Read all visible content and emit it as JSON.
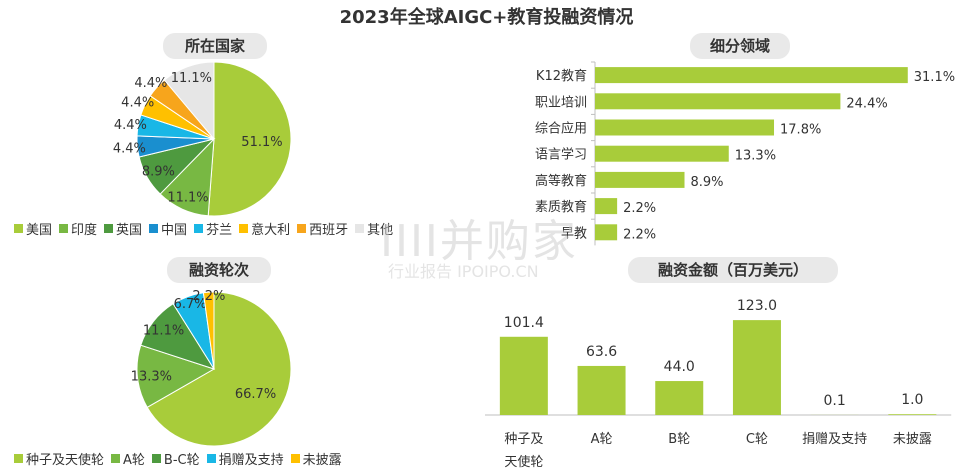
{
  "title": "2023年全球AIGC+教育投融资情况",
  "colors": {
    "green": "#a8cc3a",
    "green_mid": "#78b843",
    "green_dark": "#4e9a3f",
    "blue": "#1a8fcf",
    "cyan": "#19b7e6",
    "yellow": "#ffc000",
    "orange": "#f7a51c",
    "gray": "#e6e6e6"
  },
  "watermark": {
    "main": "IIII并购家",
    "sub": "行业报告 IPOIPO.CN"
  },
  "chart_data": [
    {
      "type": "pie",
      "title": "所在国家",
      "categories": [
        "美国",
        "印度",
        "英国",
        "中国",
        "芬兰",
        "意大利",
        "西班牙",
        "其他"
      ],
      "values": [
        51.1,
        11.1,
        8.9,
        4.4,
        4.4,
        4.4,
        4.4,
        11.1
      ],
      "labels": [
        "51.1%",
        "11.1%",
        "8.9%",
        "4.4%",
        "4.4%",
        "4.4%",
        "4.4%",
        "11.1%"
      ],
      "legend": "bottom"
    },
    {
      "type": "bar",
      "orientation": "horizontal",
      "title": "细分领域",
      "categories": [
        "K12教育",
        "职业培训",
        "综合应用",
        "语言学习",
        "高等教育",
        "素质教育",
        "早教"
      ],
      "values": [
        31.1,
        24.4,
        17.8,
        13.3,
        8.9,
        2.2,
        2.2
      ],
      "labels": [
        "31.1%",
        "24.4%",
        "17.8%",
        "13.3%",
        "8.9%",
        "2.2%",
        "2.2%"
      ]
    },
    {
      "type": "pie",
      "title": "融资轮次",
      "categories": [
        "种子及天使轮",
        "A轮",
        "B-C轮",
        "捐赠及支持",
        "未披露"
      ],
      "values": [
        66.7,
        13.3,
        11.1,
        6.7,
        2.2
      ],
      "labels": [
        "66.7%",
        "13.3%",
        "11.1%",
        "6.7%",
        "2.2%"
      ],
      "legend": "bottom"
    },
    {
      "type": "bar",
      "title": "融资金额（百万美元）",
      "categories": [
        "种子及天使轮",
        "A轮",
        "B轮",
        "C轮",
        "捐赠及支持",
        "未披露"
      ],
      "tick_labels": [
        [
          "种子及",
          "天使轮"
        ],
        [
          "A轮"
        ],
        [
          "B轮"
        ],
        [
          "C轮"
        ],
        [
          "捐赠及支持"
        ],
        [
          "未披露"
        ]
      ],
      "values": [
        101.4,
        63.6,
        44.0,
        123.0,
        0.1,
        1.0
      ],
      "labels": [
        "101.4",
        "63.6",
        "44.0",
        "123.0",
        "0.1",
        "1.0"
      ]
    }
  ]
}
